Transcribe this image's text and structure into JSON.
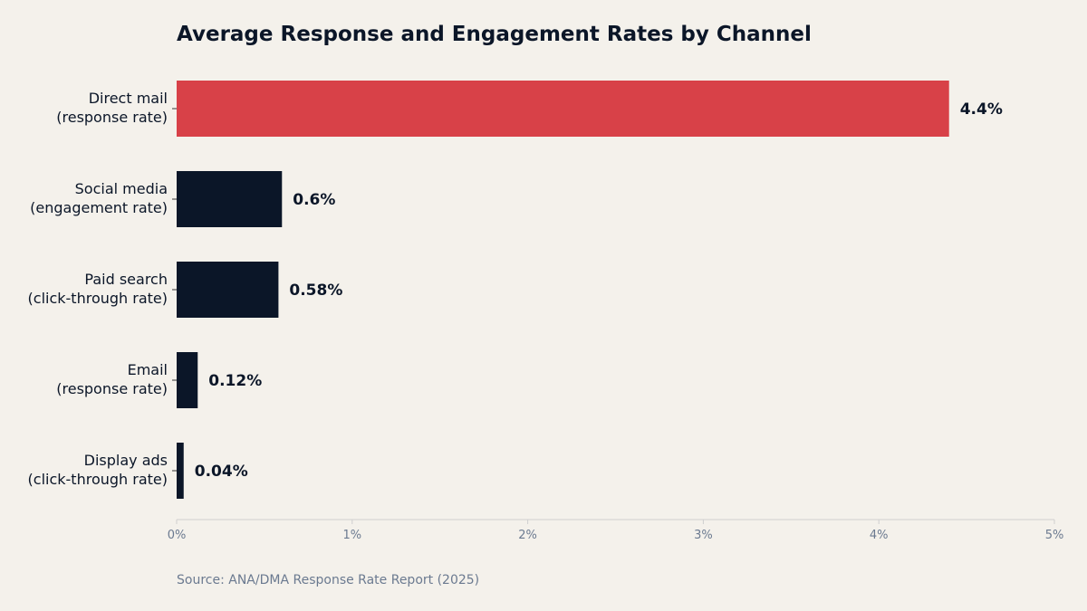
{
  "chart_data": {
    "type": "bar",
    "orientation": "horizontal",
    "title": "Average Response and Engagement Rates by Channel",
    "categories": [
      [
        "Direct mail",
        "(response rate)"
      ],
      [
        "Social media",
        "(engagement rate)"
      ],
      [
        "Paid search",
        "(click-through rate)"
      ],
      [
        "Email",
        "(response rate)"
      ],
      [
        "Display ads",
        "(click-through rate)"
      ]
    ],
    "values": [
      4.4,
      0.6,
      0.58,
      0.12,
      0.04
    ],
    "value_labels": [
      "4.4%",
      "0.6%",
      "0.58%",
      "0.12%",
      "0.04%"
    ],
    "highlight_index": 0,
    "xlim": [
      0,
      5
    ],
    "xticks": [
      0,
      1,
      2,
      3,
      4,
      5
    ],
    "xtick_labels": [
      "0%",
      "1%",
      "2%",
      "3%",
      "4%",
      "5%"
    ],
    "xlabel": "",
    "ylabel": "",
    "grid": false,
    "legend": "none",
    "colors": {
      "highlight": "#d84148",
      "bar": "#0b1628",
      "background": "#f4f1eb",
      "text": "#0b1628",
      "muted": "#6b7280",
      "axis": "#cfcfcf"
    }
  },
  "source": "Source: ANA/DMA Response Rate Report (2025)"
}
